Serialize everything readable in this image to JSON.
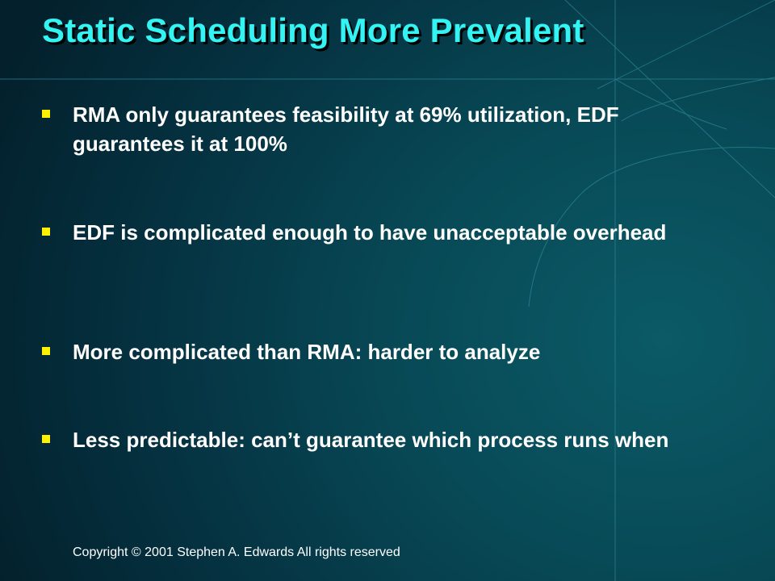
{
  "slide": {
    "title": "Static Scheduling More Prevalent",
    "bullets": [
      {
        "text": "RMA only guarantees feasibility at 69% utilization, EDF guarantees it at 100%"
      },
      {
        "text": "EDF is complicated enough to have unacceptable overhead"
      },
      {
        "text": "More complicated than RMA: harder to analyze"
      },
      {
        "text": "Less predictable: can’t guarantee which process runs when"
      }
    ],
    "footer": "Copyright © 2001 Stephen A. Edwards All rights reserved"
  },
  "colors": {
    "title": "#33f3f3",
    "bullet_marker": "#fff200",
    "body_text": "#ffffff",
    "background_dark": "#03202c",
    "background_light": "#0b5a66"
  }
}
